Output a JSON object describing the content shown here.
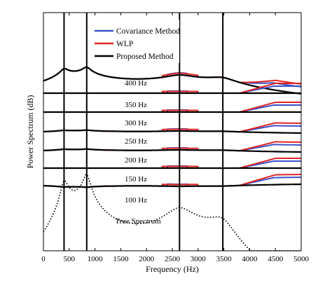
{
  "chart_data": {
    "type": "line",
    "xlabel": "Frequency (Hz)",
    "ylabel": "Power Spectrum (dB)",
    "xlim": [
      0,
      5000
    ],
    "xticks": [
      0,
      500,
      1000,
      1500,
      2000,
      2500,
      3000,
      3500,
      4000,
      4500,
      5000
    ],
    "y_ticks_shown": false,
    "grid": false,
    "formant_lines_hz": [
      400,
      840,
      2640,
      3480
    ],
    "legend": {
      "placement": "top-center",
      "entries": [
        {
          "name": "Covariance Method",
          "color": "#3b53c9"
        },
        {
          "name": "WLP",
          "color": "#e02424"
        },
        {
          "name": "Proposed Method",
          "color": "#000000"
        }
      ]
    },
    "offset_labels": [
      "400 Hz",
      "350 Hz",
      "300 Hz",
      "250 Hz",
      "200 Hz",
      "150 Hz",
      "100 Hz",
      "True Spectrum"
    ],
    "true_spectrum_style": "dotted"
  }
}
